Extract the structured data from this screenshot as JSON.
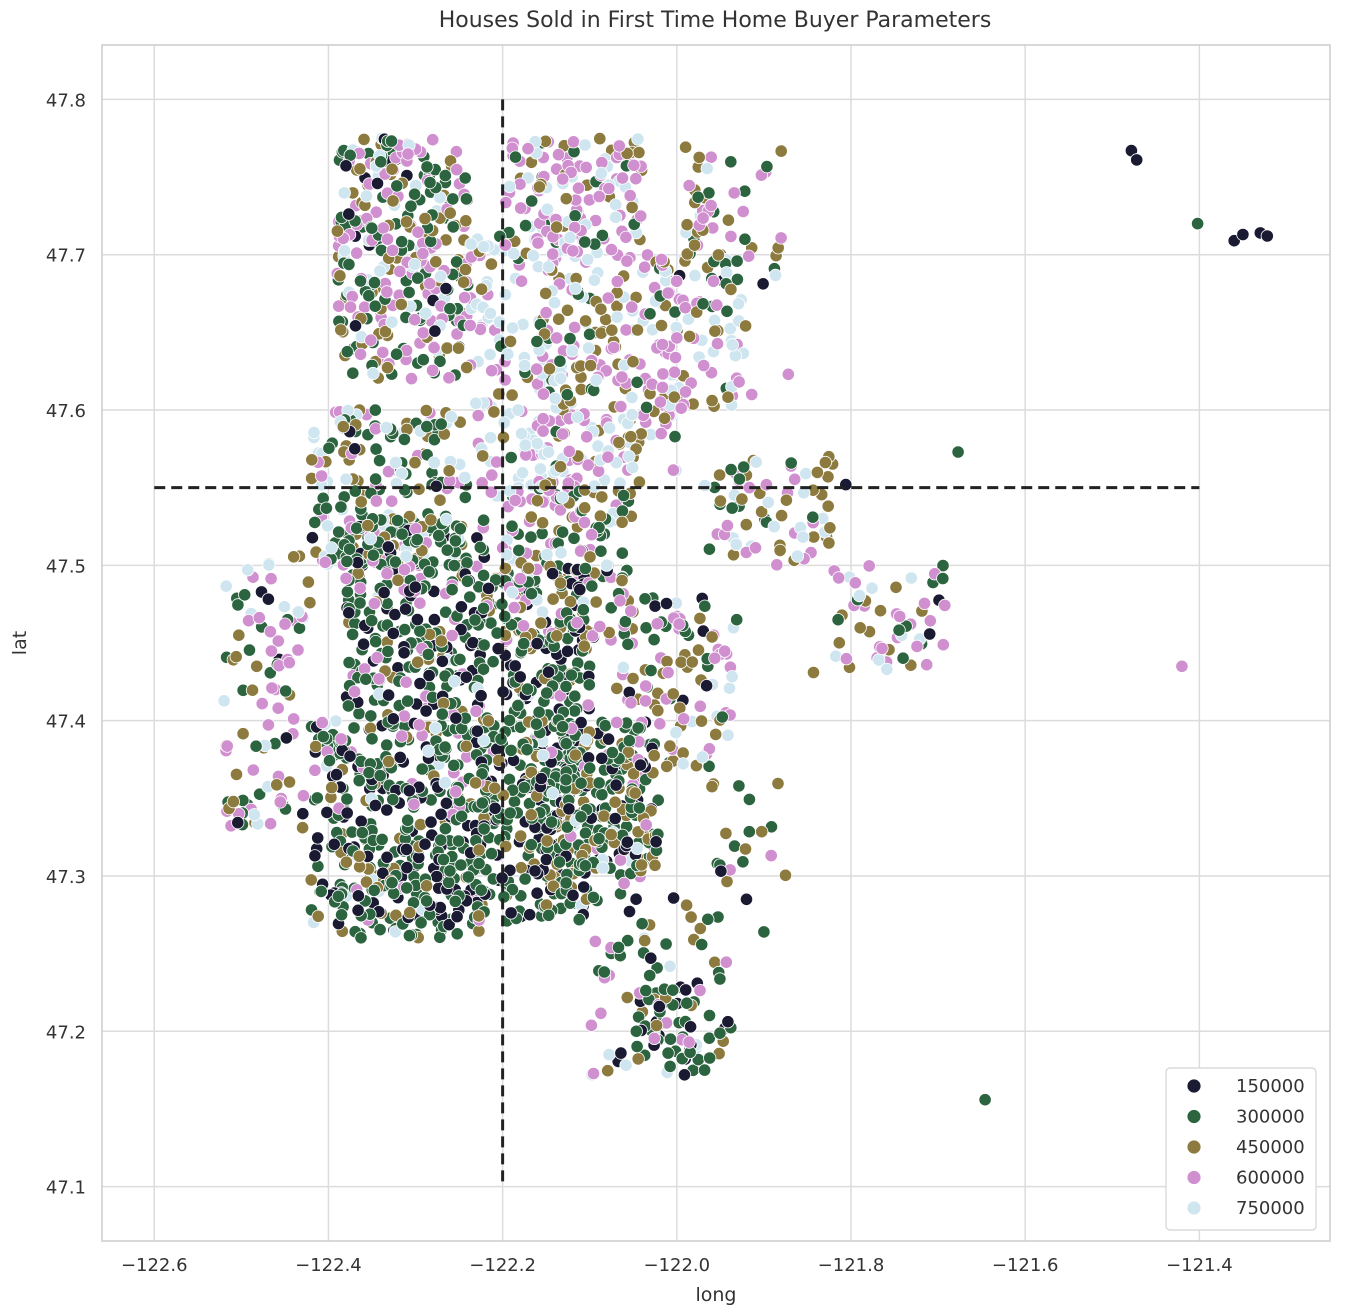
{
  "chart_data": {
    "type": "scatter",
    "title": "Houses Sold in First Time Home Buyer Parameters",
    "xlabel": "long",
    "ylabel": "lat",
    "xlim": [
      -122.66,
      -121.25
    ],
    "ylim": [
      47.065,
      47.835
    ],
    "x_ticks": [
      -122.6,
      -122.4,
      -122.2,
      -122.0,
      -121.8,
      -121.6,
      -121.4
    ],
    "x_tick_labels": [
      "−122.6",
      "−122.4",
      "−122.2",
      "−122.0",
      "−121.8",
      "−121.6",
      "−121.4"
    ],
    "y_ticks": [
      47.1,
      47.2,
      47.3,
      47.4,
      47.5,
      47.6,
      47.7,
      47.8
    ],
    "y_tick_labels": [
      "47.1",
      "47.2",
      "47.3",
      "47.4",
      "47.5",
      "47.6",
      "47.7",
      "47.8"
    ],
    "grid": true,
    "legend_position": "bottom-right",
    "hue_legend": [
      {
        "label": "150000",
        "color": "#1b1a33"
      },
      {
        "label": "300000",
        "color": "#2d6440"
      },
      {
        "label": "450000",
        "color": "#8c7a3e"
      },
      {
        "label": "600000",
        "color": "#d08fcf"
      },
      {
        "label": "750000",
        "color": "#cfe6f0"
      }
    ],
    "reference_lines": [
      {
        "orientation": "vertical",
        "x": -122.2,
        "y_range": [
          47.1,
          47.8
        ],
        "style": "dashed",
        "color": "#222222"
      },
      {
        "orientation": "horizontal",
        "y": 47.55,
        "x_range": [
          -122.6,
          -121.4
        ],
        "style": "dashed",
        "color": "#222222"
      }
    ],
    "clusters": [
      {
        "long": [
          -122.39,
          -122.24
        ],
        "lat": [
          47.62,
          47.775
        ],
        "n": 320,
        "weights": [
          0.05,
          0.3,
          0.2,
          0.35,
          0.1
        ]
      },
      {
        "long": [
          -122.2,
          -122.04
        ],
        "lat": [
          47.7,
          47.775
        ],
        "n": 150,
        "weights": [
          0.0,
          0.15,
          0.2,
          0.4,
          0.25
        ]
      },
      {
        "long": [
          -122.24,
          -122.12
        ],
        "lat": [
          47.54,
          47.72
        ],
        "n": 140,
        "weights": [
          0.0,
          0.05,
          0.1,
          0.3,
          0.55
        ]
      },
      {
        "long": [
          -122.16,
          -122.0
        ],
        "lat": [
          47.55,
          47.7
        ],
        "n": 230,
        "weights": [
          0.0,
          0.1,
          0.25,
          0.4,
          0.25
        ]
      },
      {
        "long": [
          -122.02,
          -121.92
        ],
        "lat": [
          47.6,
          47.7
        ],
        "n": 80,
        "weights": [
          0.02,
          0.2,
          0.2,
          0.3,
          0.28
        ]
      },
      {
        "long": [
          -121.99,
          -121.88
        ],
        "lat": [
          47.68,
          47.77
        ],
        "n": 55,
        "weights": [
          0.05,
          0.3,
          0.25,
          0.25,
          0.15
        ]
      },
      {
        "long": [
          -122.42,
          -122.24
        ],
        "lat": [
          47.5,
          47.6
        ],
        "n": 200,
        "weights": [
          0.05,
          0.35,
          0.2,
          0.15,
          0.25
        ]
      },
      {
        "long": [
          -122.38,
          -122.22
        ],
        "lat": [
          47.4,
          47.53
        ],
        "n": 300,
        "weights": [
          0.3,
          0.45,
          0.1,
          0.1,
          0.05
        ]
      },
      {
        "long": [
          -122.42,
          -122.22
        ],
        "lat": [
          47.26,
          47.4
        ],
        "n": 420,
        "weights": [
          0.25,
          0.5,
          0.15,
          0.05,
          0.05
        ]
      },
      {
        "long": [
          -122.23,
          -122.1
        ],
        "lat": [
          47.27,
          47.5
        ],
        "n": 380,
        "weights": [
          0.25,
          0.55,
          0.15,
          0.03,
          0.02
        ]
      },
      {
        "long": [
          -122.18,
          -122.02
        ],
        "lat": [
          47.3,
          47.4
        ],
        "n": 300,
        "weights": [
          0.2,
          0.5,
          0.2,
          0.05,
          0.05
        ]
      },
      {
        "long": [
          -122.2,
          -122.05
        ],
        "lat": [
          47.45,
          47.55
        ],
        "n": 160,
        "weights": [
          0.05,
          0.3,
          0.3,
          0.25,
          0.1
        ]
      },
      {
        "long": [
          -122.07,
          -121.93
        ],
        "lat": [
          47.37,
          47.48
        ],
        "n": 110,
        "weights": [
          0.05,
          0.25,
          0.3,
          0.3,
          0.1
        ]
      },
      {
        "long": [
          -122.52,
          -122.42
        ],
        "lat": [
          47.33,
          47.51
        ],
        "n": 95,
        "weights": [
          0.05,
          0.25,
          0.25,
          0.3,
          0.15
        ]
      },
      {
        "long": [
          -121.97,
          -121.82
        ],
        "lat": [
          47.5,
          47.57
        ],
        "n": 70,
        "weights": [
          0.02,
          0.2,
          0.3,
          0.3,
          0.18
        ]
      },
      {
        "long": [
          -121.82,
          -121.69
        ],
        "lat": [
          47.43,
          47.5
        ],
        "n": 55,
        "weights": [
          0.05,
          0.3,
          0.2,
          0.3,
          0.15
        ]
      },
      {
        "long": [
          -122.1,
          -121.93
        ],
        "lat": [
          47.17,
          47.3
        ],
        "n": 90,
        "weights": [
          0.2,
          0.5,
          0.15,
          0.1,
          0.05
        ]
      },
      {
        "long": [
          -122.05,
          -121.98
        ],
        "lat": [
          47.18,
          47.23
        ],
        "n": 35,
        "weights": [
          0.45,
          0.45,
          0.05,
          0.05,
          0.0
        ]
      },
      {
        "long": [
          -121.96,
          -121.87
        ],
        "lat": [
          47.3,
          47.36
        ],
        "n": 18,
        "weights": [
          0.05,
          0.4,
          0.35,
          0.1,
          0.1
        ]
      }
    ],
    "outlier_points": [
      {
        "long": -121.478,
        "lat": 47.767,
        "hue": 0
      },
      {
        "long": -121.472,
        "lat": 47.761,
        "hue": 0
      },
      {
        "long": -121.36,
        "lat": 47.709,
        "hue": 0
      },
      {
        "long": -121.35,
        "lat": 47.713,
        "hue": 0
      },
      {
        "long": -121.33,
        "lat": 47.714,
        "hue": 0
      },
      {
        "long": -121.322,
        "lat": 47.712,
        "hue": 0
      },
      {
        "long": -121.402,
        "lat": 47.72,
        "hue": 1
      },
      {
        "long": -121.677,
        "lat": 47.573,
        "hue": 1
      },
      {
        "long": -121.646,
        "lat": 47.156,
        "hue": 1
      },
      {
        "long": -121.42,
        "lat": 47.435,
        "hue": 3
      },
      {
        "long": -121.843,
        "lat": 47.431,
        "hue": 2
      },
      {
        "long": -121.872,
        "lat": 47.623,
        "hue": 3
      },
      {
        "long": -121.914,
        "lat": 47.61,
        "hue": 3
      },
      {
        "long": -121.806,
        "lat": 47.552,
        "hue": 0
      },
      {
        "long": -121.92,
        "lat": 47.285,
        "hue": 0
      },
      {
        "long": -121.9,
        "lat": 47.264,
        "hue": 1
      }
    ]
  }
}
